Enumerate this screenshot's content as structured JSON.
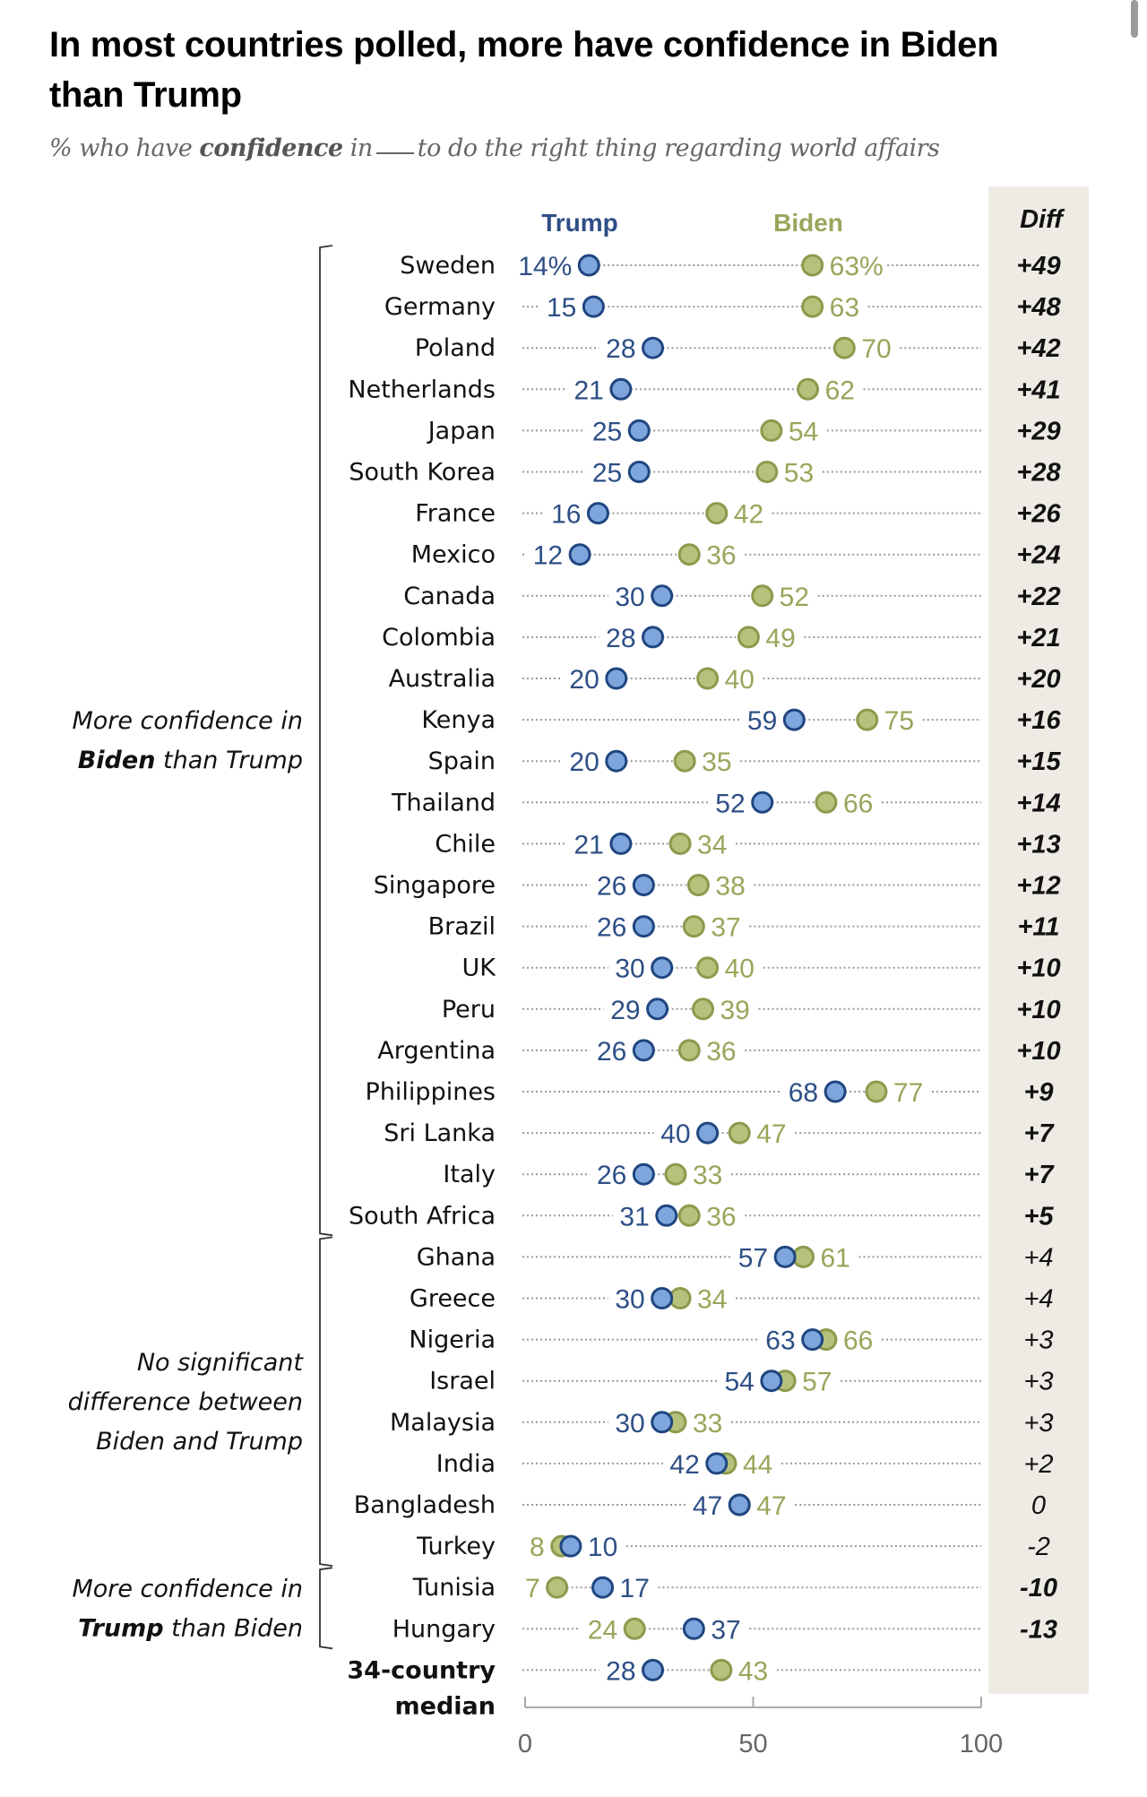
{
  "title": "In most countries polled, more have confidence in Biden than Trump",
  "subtitle": {
    "prefix": "% who have",
    "emphasis": "confidence",
    "mid": "in",
    "suffix": "to do the right thing regarding world affairs"
  },
  "colors": {
    "trump": "#2e4f86",
    "trump_fill": "#7ea6dc",
    "trump_stroke": "#1f4680",
    "biden": "#9aa55b",
    "biden_fill": "#b6c27c",
    "biden_stroke": "#8c9a4c",
    "diff_panel": "#eeebe5"
  },
  "chart_data": {
    "type": "scatter",
    "subtype": "dot-plot",
    "title": "In most countries polled, more have confidence in Biden than Trump",
    "subtitle": "% who have confidence in __ to do the right thing regarding world affairs",
    "xlabel": "",
    "ylabel": "",
    "xlim": [
      0,
      100
    ],
    "xticks": [
      "0",
      "50",
      "100"
    ],
    "series_names": [
      "Trump",
      "Biden"
    ],
    "diff_header": "Diff",
    "grid": false,
    "legend": "top (column headers)",
    "groups": [
      {
        "label_lines": [
          [
            "More confidence in",
            false
          ]
        ],
        "label_line2": [
          [
            "Biden",
            true
          ],
          [
            " than Trump",
            false
          ]
        ],
        "from": 0,
        "to": 23
      },
      {
        "label_lines": [
          [
            "No significant",
            false
          ],
          [
            "difference between",
            false
          ],
          [
            "Biden and Trump",
            false
          ]
        ],
        "from": 24,
        "to": 31
      },
      {
        "label_lines": [
          [
            "More confidence in",
            false
          ]
        ],
        "label_line2": [
          [
            "Trump",
            true
          ],
          [
            " than Biden",
            false
          ]
        ],
        "from": 32,
        "to": 33
      }
    ],
    "rows": [
      {
        "country": "Sweden",
        "trump": 14,
        "biden": 63,
        "diff": "+49",
        "sig": true,
        "trump_label": "14%",
        "biden_label": "63%"
      },
      {
        "country": "Germany",
        "trump": 15,
        "biden": 63,
        "diff": "+48",
        "sig": true
      },
      {
        "country": "Poland",
        "trump": 28,
        "biden": 70,
        "diff": "+42",
        "sig": true
      },
      {
        "country": "Netherlands",
        "trump": 21,
        "biden": 62,
        "diff": "+41",
        "sig": true
      },
      {
        "country": "Japan",
        "trump": 25,
        "biden": 54,
        "diff": "+29",
        "sig": true
      },
      {
        "country": "South Korea",
        "trump": 25,
        "biden": 53,
        "diff": "+28",
        "sig": true
      },
      {
        "country": "France",
        "trump": 16,
        "biden": 42,
        "diff": "+26",
        "sig": true
      },
      {
        "country": "Mexico",
        "trump": 12,
        "biden": 36,
        "diff": "+24",
        "sig": true
      },
      {
        "country": "Canada",
        "trump": 30,
        "biden": 52,
        "diff": "+22",
        "sig": true
      },
      {
        "country": "Colombia",
        "trump": 28,
        "biden": 49,
        "diff": "+21",
        "sig": true
      },
      {
        "country": "Australia",
        "trump": 20,
        "biden": 40,
        "diff": "+20",
        "sig": true
      },
      {
        "country": "Kenya",
        "trump": 59,
        "biden": 75,
        "diff": "+16",
        "sig": true
      },
      {
        "country": "Spain",
        "trump": 20,
        "biden": 35,
        "diff": "+15",
        "sig": true
      },
      {
        "country": "Thailand",
        "trump": 52,
        "biden": 66,
        "diff": "+14",
        "sig": true
      },
      {
        "country": "Chile",
        "trump": 21,
        "biden": 34,
        "diff": "+13",
        "sig": true
      },
      {
        "country": "Singapore",
        "trump": 26,
        "biden": 38,
        "diff": "+12",
        "sig": true
      },
      {
        "country": "Brazil",
        "trump": 26,
        "biden": 37,
        "diff": "+11",
        "sig": true
      },
      {
        "country": "UK",
        "trump": 30,
        "biden": 40,
        "diff": "+10",
        "sig": true
      },
      {
        "country": "Peru",
        "trump": 29,
        "biden": 39,
        "diff": "+10",
        "sig": true
      },
      {
        "country": "Argentina",
        "trump": 26,
        "biden": 36,
        "diff": "+10",
        "sig": true
      },
      {
        "country": "Philippines",
        "trump": 68,
        "biden": 77,
        "diff": "+9",
        "sig": true
      },
      {
        "country": "Sri Lanka",
        "trump": 40,
        "biden": 47,
        "diff": "+7",
        "sig": true
      },
      {
        "country": "Italy",
        "trump": 26,
        "biden": 33,
        "diff": "+7",
        "sig": true
      },
      {
        "country": "South Africa",
        "trump": 31,
        "biden": 36,
        "diff": "+5",
        "sig": true
      },
      {
        "country": "Ghana",
        "trump": 57,
        "biden": 61,
        "diff": "+4",
        "sig": false
      },
      {
        "country": "Greece",
        "trump": 30,
        "biden": 34,
        "diff": "+4",
        "sig": false
      },
      {
        "country": "Nigeria",
        "trump": 63,
        "biden": 66,
        "diff": "+3",
        "sig": false
      },
      {
        "country": "Israel",
        "trump": 54,
        "biden": 57,
        "diff": "+3",
        "sig": false
      },
      {
        "country": "Malaysia",
        "trump": 30,
        "biden": 33,
        "diff": "+3",
        "sig": false
      },
      {
        "country": "India",
        "trump": 42,
        "biden": 44,
        "diff": "+2",
        "sig": false
      },
      {
        "country": "Bangladesh",
        "trump": 47,
        "biden": 47,
        "diff": "0",
        "sig": false
      },
      {
        "country": "Turkey",
        "trump": 10,
        "biden": 8,
        "diff": "-2",
        "sig": false
      },
      {
        "country": "Tunisia",
        "trump": 17,
        "biden": 7,
        "diff": "-10",
        "sig": true
      },
      {
        "country": "Hungary",
        "trump": 37,
        "biden": 24,
        "diff": "-13",
        "sig": true
      },
      {
        "country": "34-country median",
        "country_lines": [
          "34-country",
          "median"
        ],
        "trump": 28,
        "biden": 43,
        "diff": "",
        "sig": false,
        "bold_label": true
      }
    ]
  }
}
